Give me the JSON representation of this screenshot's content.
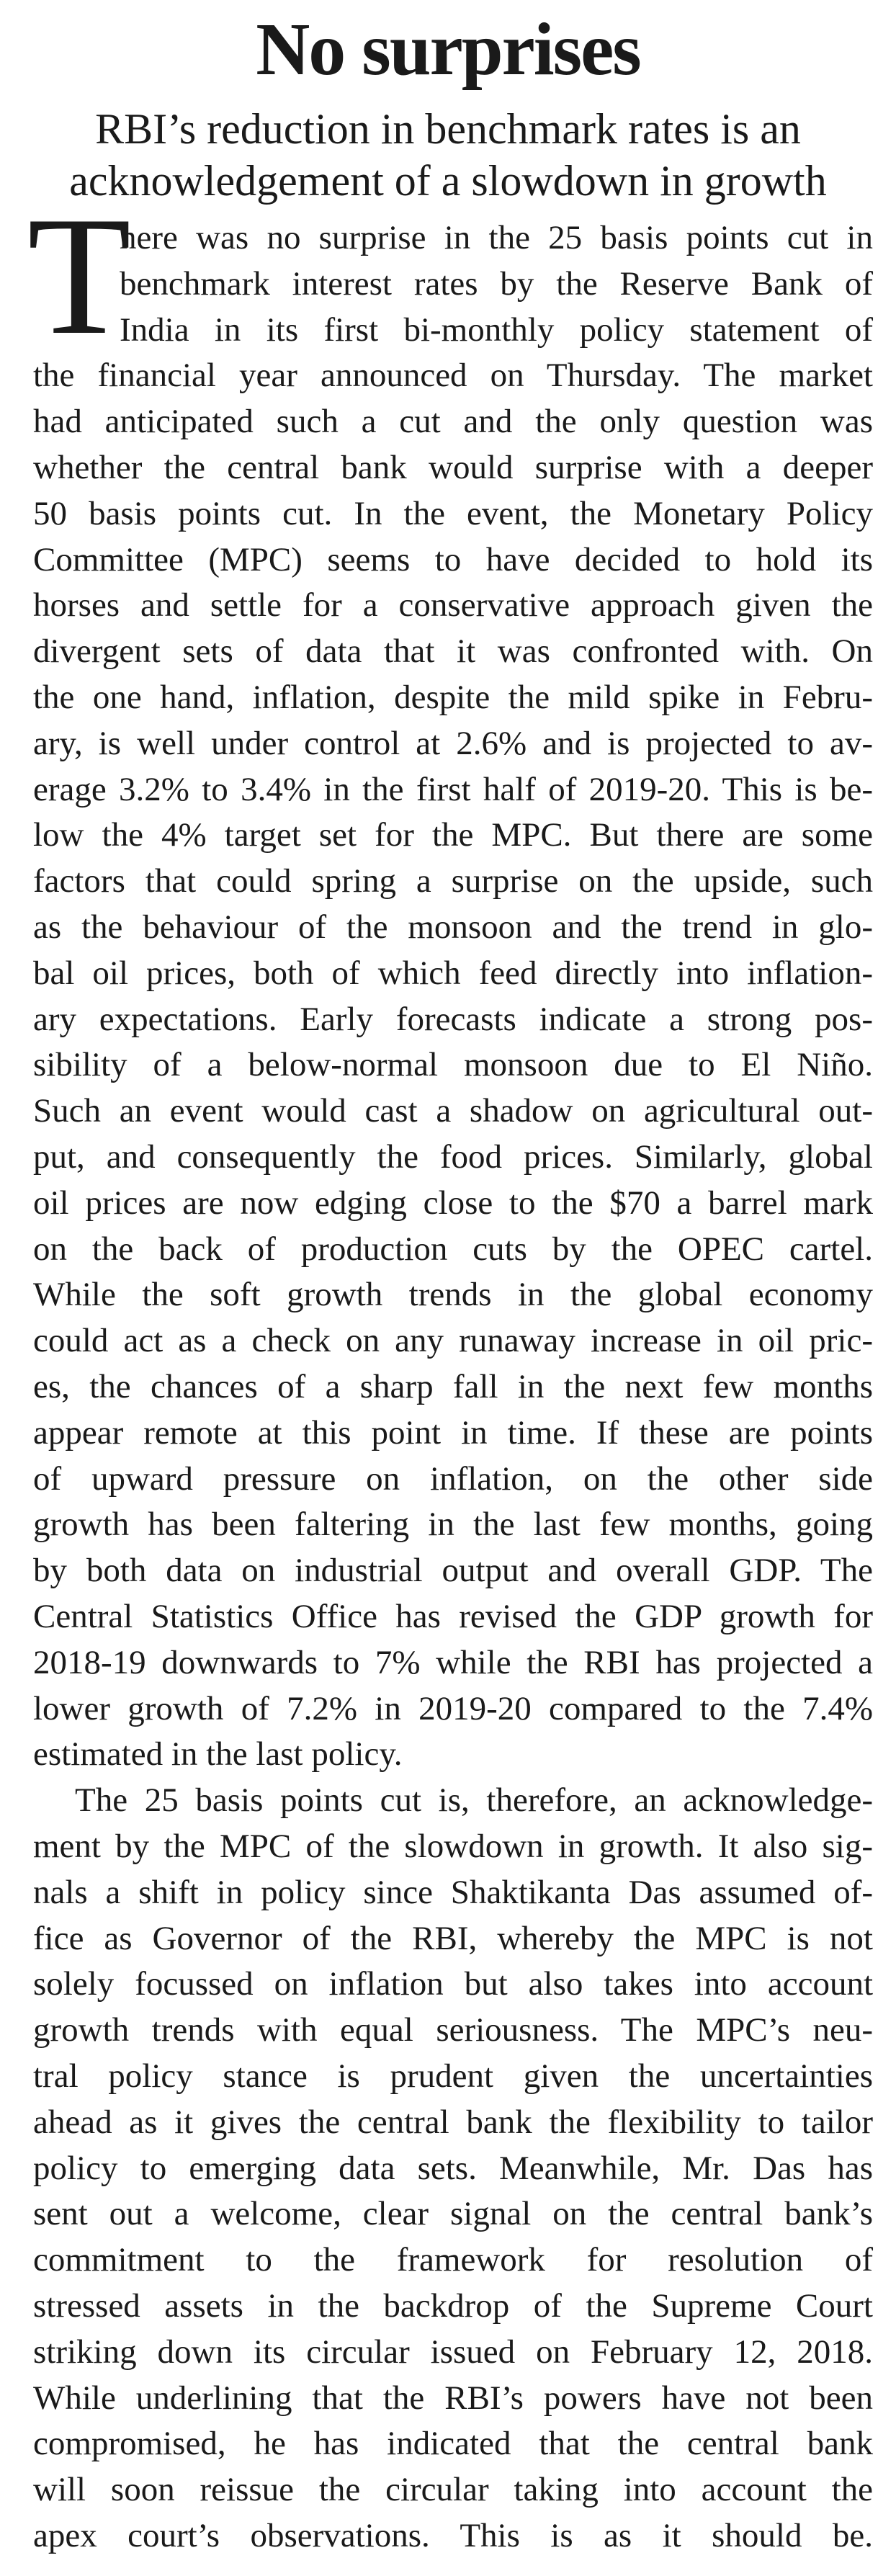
{
  "title": "No surprises",
  "subtitle_lines": [
    "RBI’s reduction in benchmark rates is an",
    "acknowledgement of a slowdown in growth"
  ],
  "drop_cap": "T",
  "paragraphs": [
    {
      "lines": [
        "here was no surprise in the 25 basis points cut in",
        "benchmark interest rates by the Reserve Bank of",
        "India in its first bi-monthly policy statement of",
        "the financial year announced on Thursday. The market",
        "had anticipated such a cut and the only question was",
        "whether the central bank would surprise with a deeper",
        "50 basis points cut. In the event, the Monetary Policy",
        "Committee (MPC) seems to have decided to hold its",
        "horses and settle for a conservative approach given the",
        "divergent sets of data that it was confronted with. On",
        "the one hand, inflation, despite the mild spike in Febru-",
        "ary, is well under control at 2.6% and is projected to av-",
        "erage 3.2% to 3.4% in the first half of 2019-20. This is be-",
        "low the 4% target set for the MPC. But there are some",
        "factors that could spring a surprise on the upside, such",
        "as the behaviour of the monsoon and the trend in glo-",
        "bal oil prices, both of which feed directly into inflation-",
        "ary expectations. Early forecasts indicate a strong pos-",
        "sibility of a below-normal monsoon due to El Niño.",
        "Such an event would cast a shadow on agricultural out-",
        "put, and consequently the food prices. Similarly, global",
        "oil prices are now edging close to the $70 a barrel mark",
        "on the back of production cuts by the OPEC cartel.",
        "While the soft growth trends in the global economy",
        "could act as a check on any runaway increase in oil pric-",
        "es, the chances of a sharp fall in the next few months",
        "appear remote at this point in time. If these are points",
        "of upward pressure on inflation, on the other side",
        "growth has been faltering in the last few months, going",
        "by both data on industrial output and overall GDP. The",
        "Central Statistics Office has revised the GDP growth for",
        "2018-19 downwards to 7% while the RBI has projected a",
        "lower growth of 7.2% in 2019-20 compared to the 7.4%",
        "estimated in the last policy."
      ]
    },
    {
      "lines": [
        "The 25 basis points cut is, therefore, an acknowledge-",
        "ment by the MPC of the slowdown in growth. It also sig-",
        "nals a shift in policy since Shaktikanta Das assumed of-",
        "fice as Governor of the RBI, whereby the MPC is not",
        "solely focussed on inflation but also takes into account",
        "growth trends with equal seriousness. The MPC’s neu-",
        "tral policy stance is prudent given the uncertainties",
        "ahead as it gives the central bank the flexibility to tailor",
        "policy to emerging data sets. Meanwhile, Mr. Das has",
        "sent out a welcome, clear signal on the central bank’s",
        "commitment to the framework for resolution of",
        "stressed assets in the backdrop of the Supreme Court",
        "striking down its circular issued on February 12, 2018.",
        "While underlining that the RBI’s powers have not been",
        "compromised, he has indicated that the central bank",
        "will soon reissue the circular taking into account the",
        "apex court’s observations. This is as it should be."
      ]
    }
  ]
}
